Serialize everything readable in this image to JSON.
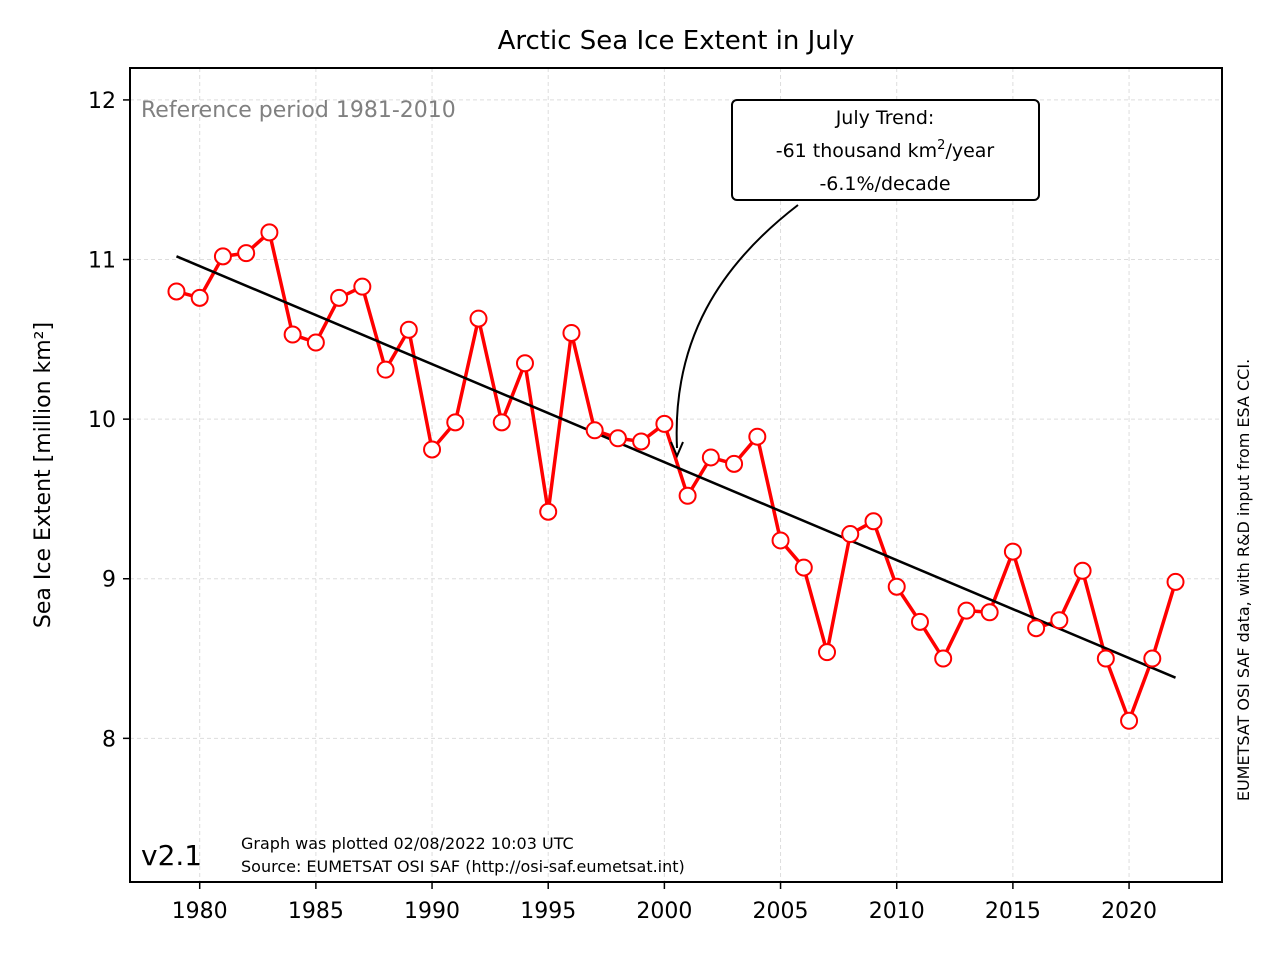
{
  "chart_data": {
    "type": "line",
    "title": "Arctic Sea Ice Extent in July",
    "ylabel": "Sea Ice Extent [million km²]",
    "xlabel": "",
    "xlim": [
      1977,
      2024
    ],
    "ylim": [
      7.1,
      12.2
    ],
    "x_ticks": [
      1980,
      1985,
      1990,
      1995,
      2000,
      2005,
      2010,
      2015,
      2020
    ],
    "y_ticks": [
      8,
      9,
      10,
      11,
      12
    ],
    "grid": true,
    "series": [
      {
        "color": "#ff0000",
        "marker": "open-circle",
        "x": [
          1979,
          1980,
          1981,
          1982,
          1983,
          1984,
          1985,
          1986,
          1987,
          1988,
          1989,
          1990,
          1991,
          1992,
          1993,
          1994,
          1995,
          1996,
          1997,
          1998,
          1999,
          2000,
          2001,
          2002,
          2003,
          2004,
          2005,
          2006,
          2007,
          2008,
          2009,
          2010,
          2011,
          2012,
          2013,
          2014,
          2015,
          2016,
          2017,
          2018,
          2019,
          2020,
          2021,
          2022
        ],
        "values": [
          10.8,
          10.76,
          11.02,
          11.04,
          11.17,
          10.53,
          10.48,
          10.76,
          10.83,
          10.31,
          10.56,
          9.81,
          9.98,
          10.63,
          9.98,
          10.35,
          9.42,
          10.54,
          9.93,
          9.88,
          9.86,
          9.97,
          9.52,
          9.76,
          9.72,
          9.89,
          9.24,
          9.07,
          8.54,
          9.28,
          9.36,
          8.95,
          8.73,
          8.5,
          8.8,
          8.79,
          9.17,
          8.69,
          8.74,
          9.05,
          8.5,
          8.11,
          8.5,
          8.98
        ]
      },
      {
        "color": "#000000",
        "kind": "trend",
        "x": [
          1979,
          2022
        ],
        "values": [
          11.02,
          8.38
        ]
      }
    ],
    "annotations": {
      "reference": "Reference period 1981-2010",
      "trend_box": {
        "line1": "July Trend:",
        "line2_prefix": "-61 thousand km",
        "line2_sup": "2",
        "line2_suffix": "/year",
        "line3": "-6.1%/decade",
        "arrow_target": [
          2000.5,
          9.75
        ]
      },
      "version": "v2.1",
      "plotted": "Graph was plotted 02/08/2022 10:03 UTC",
      "source": "Source: EUMETSAT OSI SAF (http://osi-saf.eumetsat.int)",
      "side_credit": "EUMETSAT OSI SAF data, with R&D input from ESA CCI."
    }
  }
}
